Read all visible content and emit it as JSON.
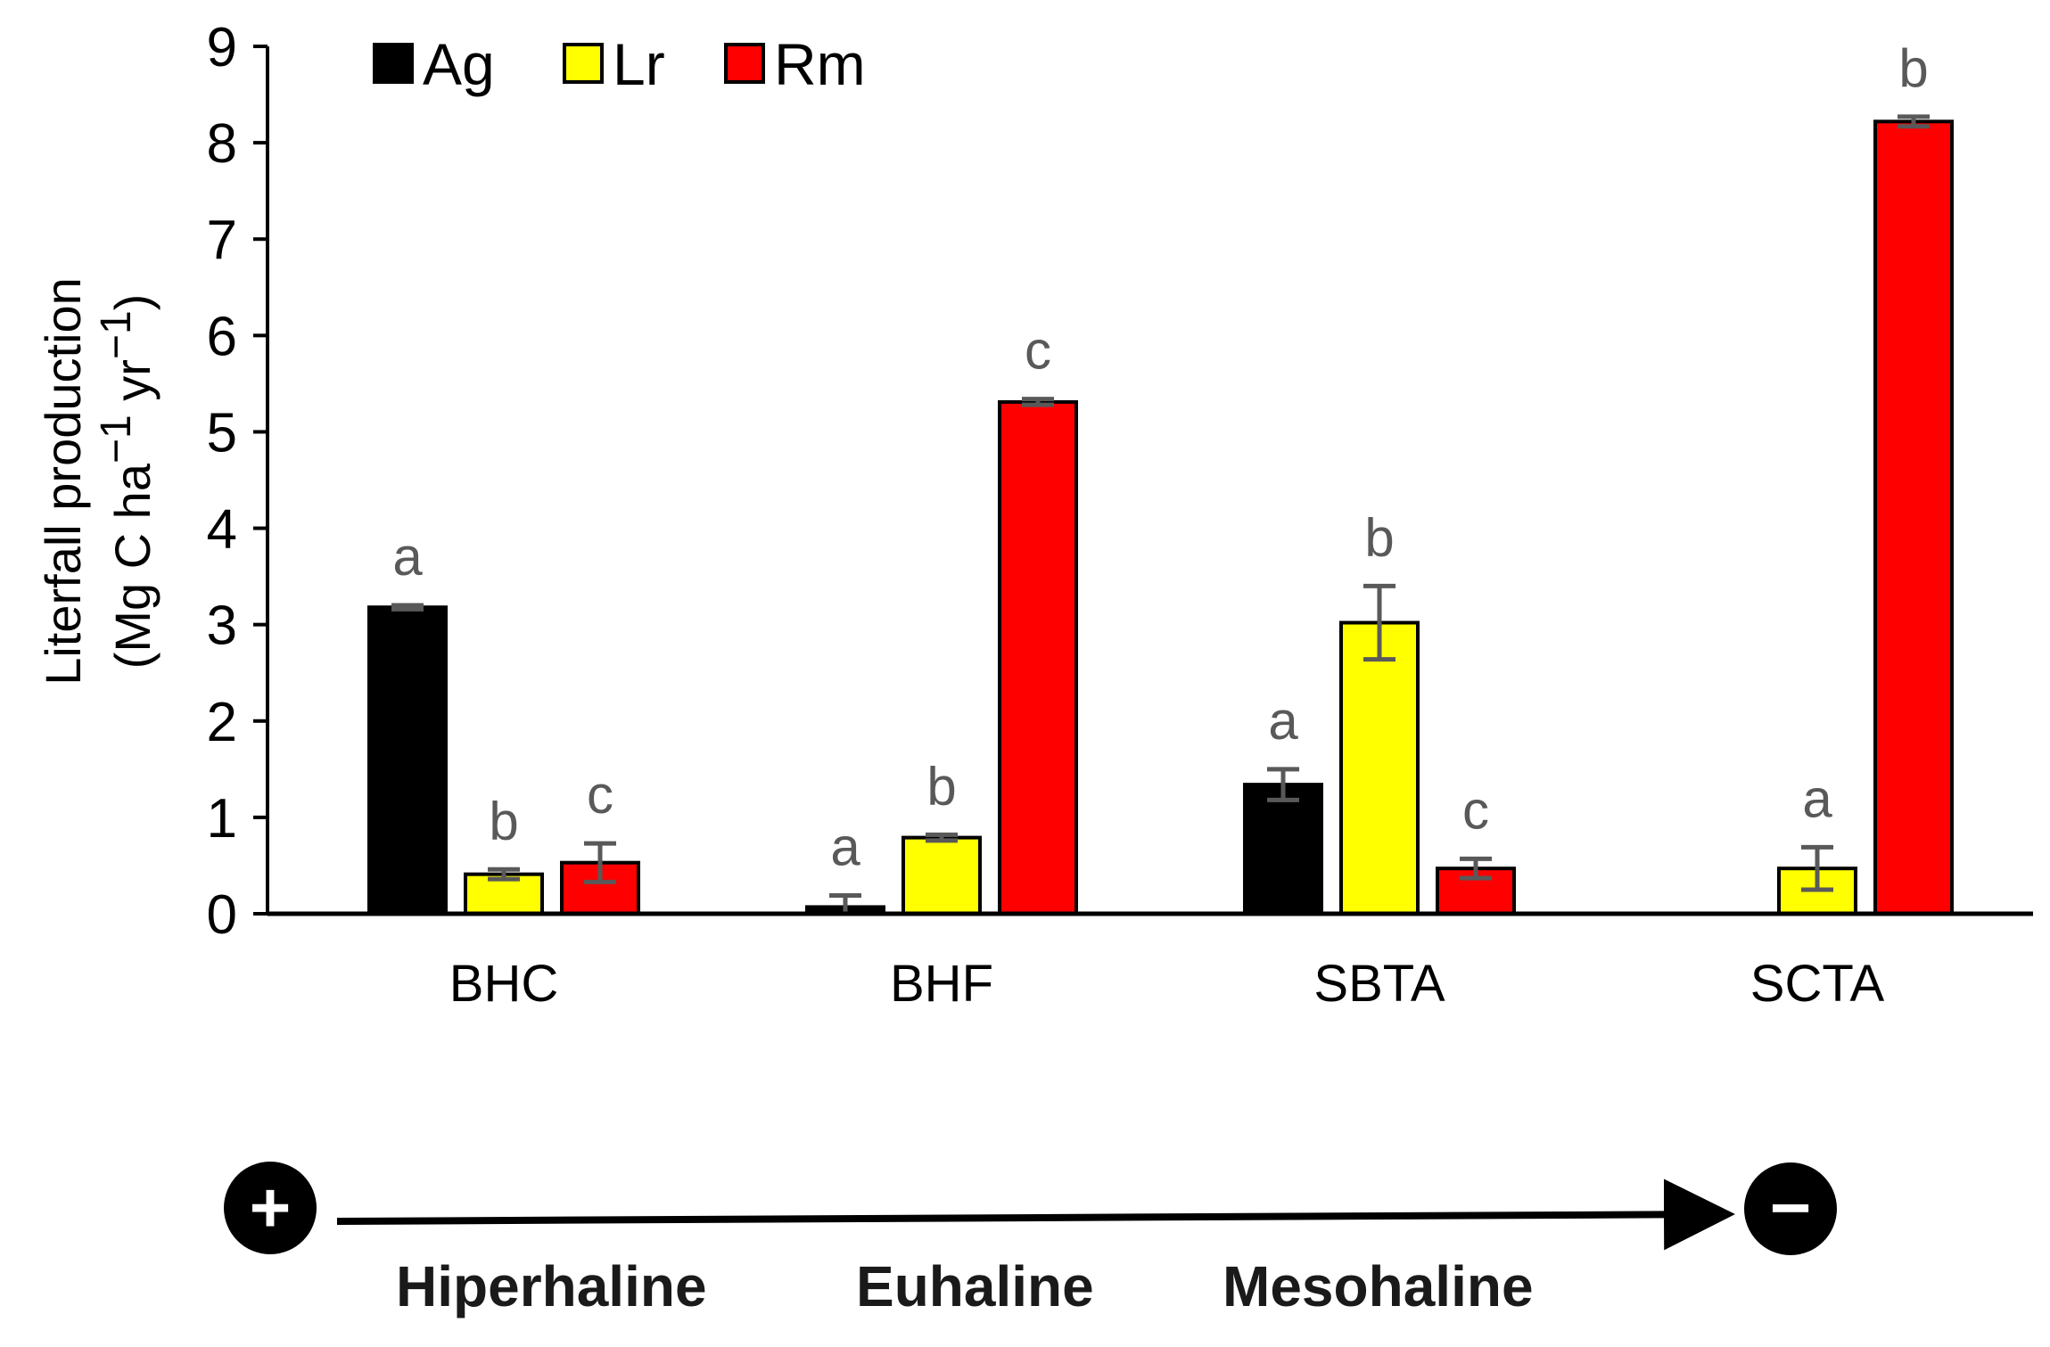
{
  "chart_data": {
    "type": "bar",
    "title": "",
    "ylabel_line1": "Literfall production",
    "ylabel_line2_prefix": "(Mg  C ha",
    "ylabel_line2_mid": " yr",
    "ylabel_line2_suffix": ")",
    "ylabel_superscript": "−1",
    "ylim": [
      0,
      9
    ],
    "yticks": [
      0,
      1,
      2,
      3,
      4,
      5,
      6,
      7,
      8,
      9
    ],
    "categories": [
      "BHC",
      "BHF",
      "SBTA",
      "SCTA"
    ],
    "series": [
      {
        "name": "Ag",
        "color": "#000000",
        "values": [
          3.18,
          0.07,
          1.34,
          null
        ],
        "errors": [
          0.02,
          0.12,
          0.16,
          null
        ],
        "letters": [
          "a",
          "a",
          "a",
          null
        ]
      },
      {
        "name": "Lr",
        "color": "#ffff00",
        "values": [
          0.41,
          0.79,
          3.02,
          0.47
        ],
        "errors": [
          0.05,
          0.03,
          0.38,
          0.22
        ],
        "letters": [
          "b",
          "b",
          "b",
          "a"
        ]
      },
      {
        "name": "Rm",
        "color": "#ff0000",
        "values": [
          0.53,
          5.31,
          0.47,
          8.22
        ],
        "errors": [
          0.2,
          0.03,
          0.1,
          0.05
        ],
        "letters": [
          "c",
          "c",
          "c",
          "b"
        ]
      }
    ],
    "legend_position": "top-left"
  },
  "gradient": {
    "start_symbol": "+",
    "end_symbol": "−",
    "labels": [
      "Hiperhaline",
      "Euhaline",
      "Mesohaline"
    ]
  },
  "colors": {
    "error_bar": "#595959",
    "axis": "#000000"
  }
}
